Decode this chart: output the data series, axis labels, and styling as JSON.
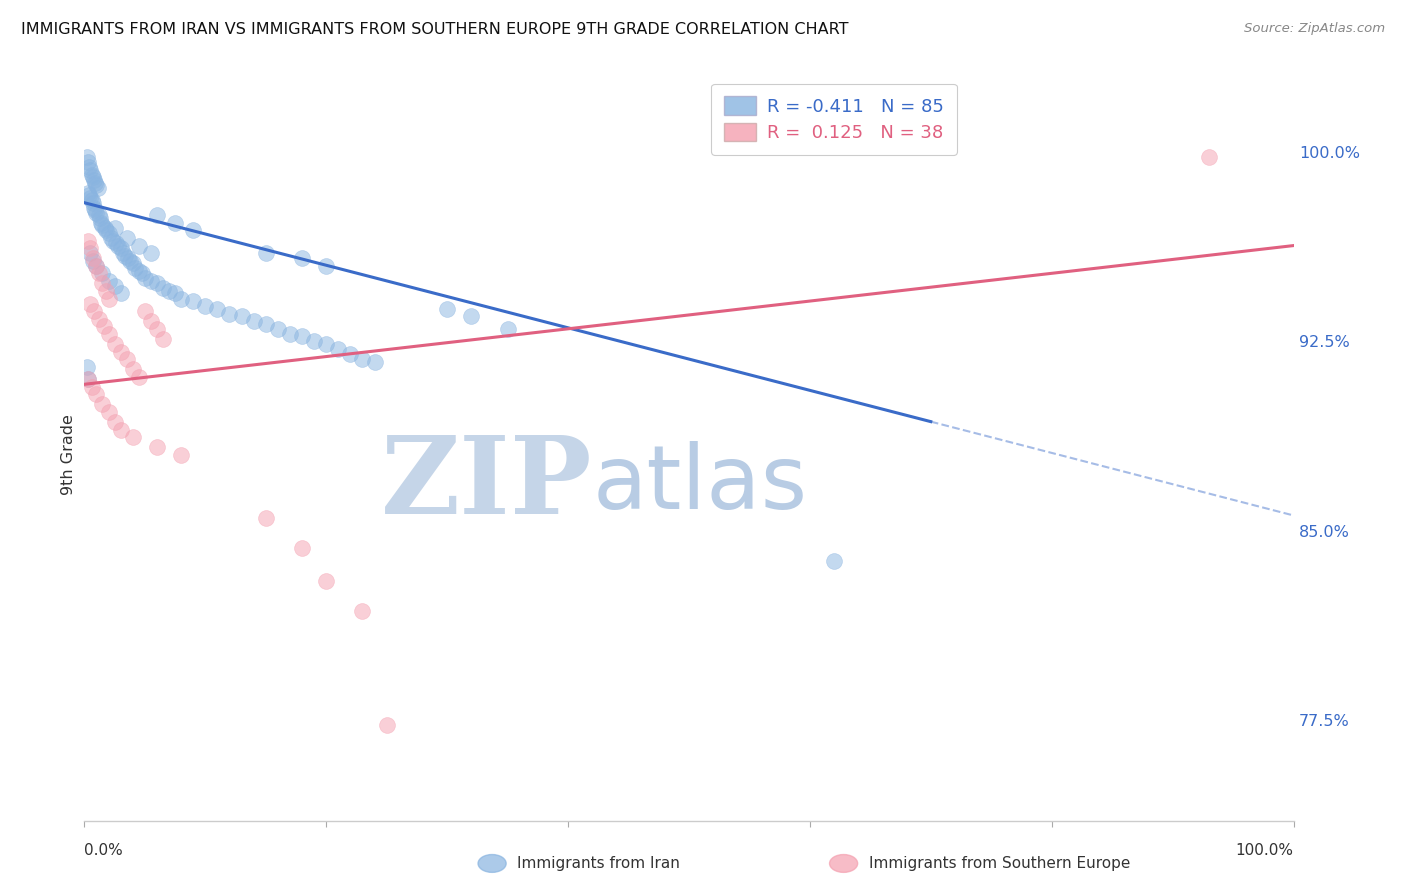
{
  "title": "IMMIGRANTS FROM IRAN VS IMMIGRANTS FROM SOUTHERN EUROPE 9TH GRADE CORRELATION CHART",
  "source": "Source: ZipAtlas.com",
  "ylabel": "9th Grade",
  "ytick_labels": [
    "100.0%",
    "92.5%",
    "85.0%",
    "77.5%"
  ],
  "ytick_values": [
    1.0,
    0.925,
    0.85,
    0.775
  ],
  "legend_blue": "R = -0.411   N = 85",
  "legend_pink": "R =  0.125   N = 38",
  "blue_color": "#89B4E0",
  "pink_color": "#F4A0B0",
  "blue_line_color": "#3A6BC8",
  "pink_line_color": "#E06080",
  "watermark_zip": "ZIP",
  "watermark_atlas": "atlas",
  "watermark_color_zip": "#C5D5E8",
  "watermark_color_atlas": "#B8CCE4",
  "blue_scatter": [
    [
      0.002,
      0.998
    ],
    [
      0.003,
      0.996
    ],
    [
      0.004,
      0.994
    ],
    [
      0.005,
      0.993
    ],
    [
      0.006,
      0.991
    ],
    [
      0.007,
      0.99
    ],
    [
      0.008,
      0.989
    ],
    [
      0.009,
      0.988
    ],
    [
      0.01,
      0.987
    ],
    [
      0.011,
      0.986
    ],
    [
      0.003,
      0.984
    ],
    [
      0.004,
      0.983
    ],
    [
      0.005,
      0.982
    ],
    [
      0.006,
      0.981
    ],
    [
      0.007,
      0.98
    ],
    [
      0.008,
      0.978
    ],
    [
      0.009,
      0.977
    ],
    [
      0.01,
      0.976
    ],
    [
      0.012,
      0.975
    ],
    [
      0.013,
      0.974
    ],
    [
      0.014,
      0.972
    ],
    [
      0.015,
      0.971
    ],
    [
      0.017,
      0.97
    ],
    [
      0.018,
      0.969
    ],
    [
      0.02,
      0.968
    ],
    [
      0.022,
      0.966
    ],
    [
      0.024,
      0.965
    ],
    [
      0.026,
      0.964
    ],
    [
      0.028,
      0.963
    ],
    [
      0.03,
      0.962
    ],
    [
      0.032,
      0.96
    ],
    [
      0.034,
      0.959
    ],
    [
      0.036,
      0.958
    ],
    [
      0.038,
      0.957
    ],
    [
      0.04,
      0.956
    ],
    [
      0.042,
      0.954
    ],
    [
      0.045,
      0.953
    ],
    [
      0.048,
      0.952
    ],
    [
      0.05,
      0.95
    ],
    [
      0.055,
      0.949
    ],
    [
      0.06,
      0.948
    ],
    [
      0.065,
      0.946
    ],
    [
      0.07,
      0.945
    ],
    [
      0.075,
      0.944
    ],
    [
      0.08,
      0.942
    ],
    [
      0.09,
      0.941
    ],
    [
      0.1,
      0.939
    ],
    [
      0.11,
      0.938
    ],
    [
      0.12,
      0.936
    ],
    [
      0.13,
      0.935
    ],
    [
      0.14,
      0.933
    ],
    [
      0.15,
      0.932
    ],
    [
      0.16,
      0.93
    ],
    [
      0.17,
      0.928
    ],
    [
      0.18,
      0.927
    ],
    [
      0.19,
      0.925
    ],
    [
      0.2,
      0.924
    ],
    [
      0.21,
      0.922
    ],
    [
      0.22,
      0.92
    ],
    [
      0.23,
      0.918
    ],
    [
      0.24,
      0.917
    ],
    [
      0.005,
      0.96
    ],
    [
      0.007,
      0.957
    ],
    [
      0.01,
      0.955
    ],
    [
      0.015,
      0.952
    ],
    [
      0.02,
      0.949
    ],
    [
      0.025,
      0.947
    ],
    [
      0.03,
      0.944
    ],
    [
      0.025,
      0.97
    ],
    [
      0.035,
      0.966
    ],
    [
      0.045,
      0.963
    ],
    [
      0.055,
      0.96
    ],
    [
      0.002,
      0.915
    ],
    [
      0.003,
      0.91
    ],
    [
      0.62,
      0.838
    ],
    [
      0.3,
      0.938
    ],
    [
      0.32,
      0.935
    ],
    [
      0.35,
      0.93
    ],
    [
      0.15,
      0.96
    ],
    [
      0.18,
      0.958
    ],
    [
      0.2,
      0.955
    ],
    [
      0.06,
      0.975
    ],
    [
      0.075,
      0.972
    ],
    [
      0.09,
      0.969
    ]
  ],
  "pink_scatter": [
    [
      0.003,
      0.965
    ],
    [
      0.005,
      0.962
    ],
    [
      0.007,
      0.958
    ],
    [
      0.01,
      0.955
    ],
    [
      0.012,
      0.952
    ],
    [
      0.015,
      0.948
    ],
    [
      0.018,
      0.945
    ],
    [
      0.02,
      0.942
    ],
    [
      0.005,
      0.94
    ],
    [
      0.008,
      0.937
    ],
    [
      0.012,
      0.934
    ],
    [
      0.016,
      0.931
    ],
    [
      0.02,
      0.928
    ],
    [
      0.025,
      0.924
    ],
    [
      0.03,
      0.921
    ],
    [
      0.035,
      0.918
    ],
    [
      0.04,
      0.914
    ],
    [
      0.045,
      0.911
    ],
    [
      0.05,
      0.937
    ],
    [
      0.055,
      0.933
    ],
    [
      0.06,
      0.93
    ],
    [
      0.065,
      0.926
    ],
    [
      0.003,
      0.91
    ],
    [
      0.006,
      0.907
    ],
    [
      0.01,
      0.904
    ],
    [
      0.015,
      0.9
    ],
    [
      0.02,
      0.897
    ],
    [
      0.025,
      0.893
    ],
    [
      0.03,
      0.89
    ],
    [
      0.04,
      0.887
    ],
    [
      0.06,
      0.883
    ],
    [
      0.08,
      0.88
    ],
    [
      0.15,
      0.855
    ],
    [
      0.18,
      0.843
    ],
    [
      0.2,
      0.83
    ],
    [
      0.23,
      0.818
    ],
    [
      0.25,
      0.773
    ],
    [
      0.93,
      0.998
    ]
  ],
  "blue_line": {
    "x0": 0.0,
    "y0": 0.98,
    "x1": 1.0,
    "y1": 0.856
  },
  "blue_line_solid_end_x": 0.7,
  "pink_line": {
    "x0": 0.0,
    "y0": 0.908,
    "x1": 1.0,
    "y1": 0.963
  },
  "xlim": [
    0.0,
    1.0
  ],
  "ylim": [
    0.735,
    1.025
  ],
  "background_color": "#FFFFFF",
  "grid_color": "#BBBBBB",
  "bottom_label_left": "Immigrants from Iran",
  "bottom_label_right": "Immigrants from Southern Europe"
}
